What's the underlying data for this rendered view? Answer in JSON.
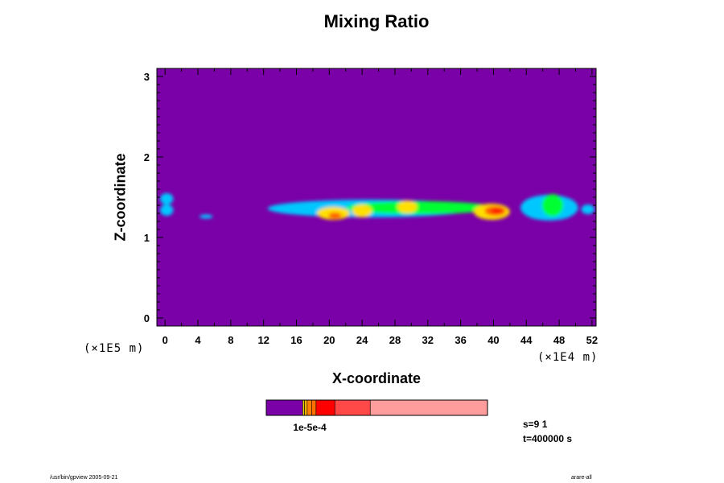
{
  "chart_data": {
    "type": "heatmap",
    "title": "Mixing Ratio",
    "xlabel": "X-coordinate",
    "ylabel": "Z-coordinate",
    "x_unit": "(×1E4 m)",
    "y_unit": "(×1E5 m)",
    "x_ticks": [
      "0",
      "4",
      "8",
      "12",
      "16",
      "20",
      "24",
      "28",
      "32",
      "36",
      "40",
      "44",
      "48",
      "52"
    ],
    "y_ticks": [
      "0",
      "1",
      "2",
      "3"
    ],
    "xlim": [
      -1,
      52.5
    ],
    "ylim": [
      -0.1,
      3.1
    ],
    "background_color": "#7a00a8",
    "plume_blobs": [
      {
        "x": 0.2,
        "z": 1.48,
        "rx": 0.8,
        "rz": 0.07,
        "level": 1
      },
      {
        "x": 0.2,
        "z": 1.34,
        "rx": 0.8,
        "rz": 0.07,
        "level": 1
      },
      {
        "x": 5.0,
        "z": 1.26,
        "rx": 0.8,
        "rz": 0.025,
        "level": 1
      },
      {
        "x": 25,
        "z": 1.36,
        "rx": 12.5,
        "rz": 0.11,
        "level": 1
      },
      {
        "x": 31,
        "z": 1.37,
        "rx": 9,
        "rz": 0.08,
        "level": 2
      },
      {
        "x": 20.5,
        "z": 1.3,
        "rx": 2,
        "rz": 0.08,
        "level": 3
      },
      {
        "x": 20.7,
        "z": 1.27,
        "rx": 0.8,
        "rz": 0.04,
        "level": 4
      },
      {
        "x": 24,
        "z": 1.33,
        "rx": 1.2,
        "rz": 0.08,
        "level": 3
      },
      {
        "x": 29.5,
        "z": 1.38,
        "rx": 1.2,
        "rz": 0.08,
        "level": 3
      },
      {
        "x": 39.8,
        "z": 1.32,
        "rx": 2.2,
        "rz": 0.1,
        "level": 3
      },
      {
        "x": 40.2,
        "z": 1.33,
        "rx": 1.3,
        "rz": 0.06,
        "level": 4
      },
      {
        "x": 40.4,
        "z": 1.33,
        "rx": 0.7,
        "rz": 0.03,
        "level": 5
      },
      {
        "x": 46.8,
        "z": 1.37,
        "rx": 3.5,
        "rz": 0.16,
        "level": 1
      },
      {
        "x": 47.2,
        "z": 1.4,
        "rx": 1.3,
        "rz": 0.14,
        "level": 2
      },
      {
        "x": 51.5,
        "z": 1.35,
        "rx": 0.8,
        "rz": 0.06,
        "level": 1
      }
    ],
    "level_colors": [
      "#7a00a8",
      "#00c8ff",
      "#00ff30",
      "#ffe000",
      "#ff6000",
      "#ff0000"
    ],
    "colorbar": {
      "segments": [
        {
          "color": "#7a00a8",
          "fraction": 0.165
        },
        {
          "color": "#f0e000",
          "fraction": 0.008
        },
        {
          "color": "#ffb000",
          "fraction": 0.012
        },
        {
          "color": "#ff8000",
          "fraction": 0.02
        },
        {
          "color": "#ff7000",
          "fraction": 0.02
        },
        {
          "color": "#ff0000",
          "fraction": 0.085
        },
        {
          "color": "#ff4848",
          "fraction": 0.16
        },
        {
          "color": "#ff9c9c",
          "fraction": 0.53
        }
      ],
      "label": "1e-5e-4"
    },
    "info": {
      "s": "s=9 1",
      "t": "t=400000 s"
    }
  },
  "footer": {
    "left": "/usr/bin/gpview 2005-09-21",
    "right": "arare-all"
  }
}
